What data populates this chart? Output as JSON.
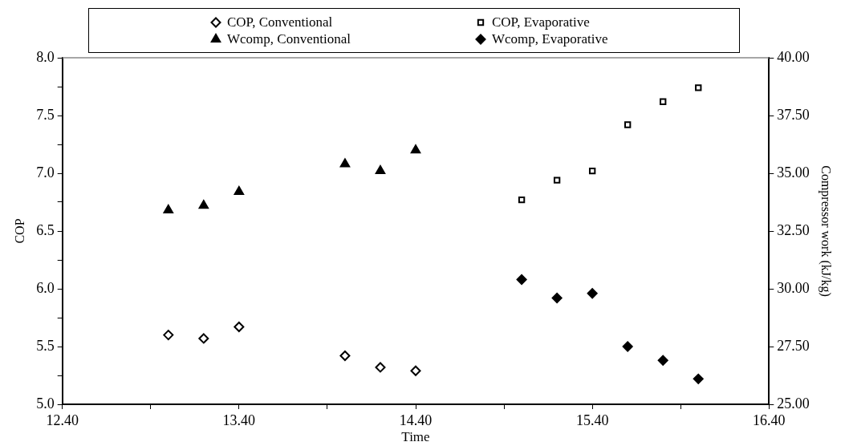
{
  "chart_data": {
    "type": "scatter",
    "xlabel": "Time",
    "ylabel": "COP",
    "y2label": "Compressor work (kJ/kg)",
    "xlim": [
      12.4,
      16.4
    ],
    "xticks": [
      {
        "value": 12.4,
        "label": "12.40"
      },
      {
        "value": 12.9,
        "label": null
      },
      {
        "value": 13.4,
        "label": "13.40"
      },
      {
        "value": 13.9,
        "label": null
      },
      {
        "value": 14.4,
        "label": "14.40"
      },
      {
        "value": 14.9,
        "label": null
      },
      {
        "value": 15.4,
        "label": "15.40"
      },
      {
        "value": 15.9,
        "label": null
      },
      {
        "value": 16.4,
        "label": "16.40"
      }
    ],
    "ylim": [
      5,
      8
    ],
    "yticks": [
      {
        "value": 5,
        "label": "5.0"
      },
      {
        "value": 5.25,
        "label": null
      },
      {
        "value": 5.5,
        "label": "5.5"
      },
      {
        "value": 5.75,
        "label": null
      },
      {
        "value": 6,
        "label": "6.0"
      },
      {
        "value": 6.25,
        "label": null
      },
      {
        "value": 6.5,
        "label": "6.5"
      },
      {
        "value": 6.75,
        "label": null
      },
      {
        "value": 7,
        "label": "7.0"
      },
      {
        "value": 7.25,
        "label": null
      },
      {
        "value": 7.5,
        "label": "7.5"
      },
      {
        "value": 7.75,
        "label": null
      },
      {
        "value": 8,
        "label": "8.0"
      }
    ],
    "y2lim": [
      25,
      40
    ],
    "y2ticks": [
      {
        "value": 25,
        "label": "25.00"
      },
      {
        "value": 27.5,
        "label": "27.50"
      },
      {
        "value": 30,
        "label": "30.00"
      },
      {
        "value": 32.5,
        "label": "32.50"
      },
      {
        "value": 35,
        "label": "35.00"
      },
      {
        "value": 37.5,
        "label": "37.50"
      },
      {
        "value": 40,
        "label": "40.00"
      }
    ],
    "legend": "top",
    "grid": false,
    "series": [
      {
        "name": "COP, Conventional",
        "color": "#000000",
        "marker": "diamond",
        "x": [
          13.0,
          13.2,
          13.4,
          14.0,
          14.2,
          14.4
        ],
        "values": [
          5.6,
          5.57,
          5.67,
          5.42,
          5.32,
          5.29
        ]
      },
      {
        "name": "COP, Evaporative",
        "color": "#000000",
        "marker": "square",
        "x": [
          15.0,
          15.2,
          15.4,
          15.6,
          15.8,
          16.0
        ],
        "values": [
          6.77,
          6.94,
          7.02,
          7.42,
          7.62,
          7.74
        ]
      },
      {
        "name": "Wcomp, Conventional",
        "color": "#000000",
        "marker": "triangle",
        "axis": "y2",
        "x": [
          13.0,
          13.2,
          13.4,
          14.0,
          14.2,
          14.4
        ],
        "values": [
          33.4,
          33.6,
          34.2,
          35.4,
          35.1,
          36.0
        ]
      },
      {
        "name": "Wcomp, Evaporative",
        "color": "#000000",
        "marker": "diamond",
        "axis": "y2",
        "x": [
          15.0,
          15.2,
          15.4,
          15.6,
          15.8,
          16.0
        ],
        "values": [
          30.4,
          29.6,
          29.8,
          27.5,
          26.9,
          26.1
        ]
      }
    ]
  }
}
